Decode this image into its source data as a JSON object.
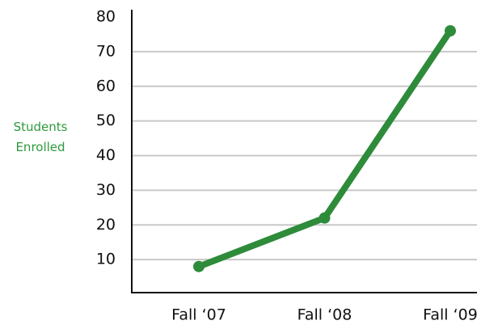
{
  "chart_data": {
    "type": "line",
    "y_label": "Students Enrolled",
    "categories": [
      "Fall ‘07",
      "Fall ‘08",
      "Fall ‘09"
    ],
    "series": [
      {
        "name": "Students Enrolled",
        "color": "#2e8b3a",
        "values": [
          8,
          22,
          76
        ]
      }
    ],
    "ylim": [
      0,
      80
    ],
    "yticks": [
      10,
      20,
      30,
      40,
      50,
      60,
      70,
      80
    ],
    "grid": true
  }
}
